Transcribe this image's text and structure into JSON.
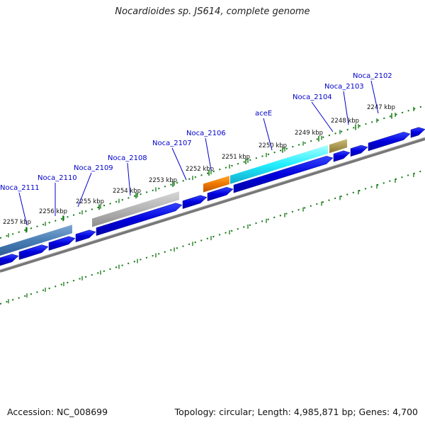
{
  "title": "Nocardioides sp. JS614, complete genome",
  "footer": {
    "accession": "Accession: NC_008699",
    "summary": "Topology: circular; Length: 4,985,871 bp; Genes: 4,700"
  },
  "colors": {
    "forward_gene": "#0000cc",
    "gene_label": "#0000cc",
    "tick": "#117711",
    "backbone": "#777777",
    "label_line": "#0000cc"
  },
  "ticks": {
    "outer": [
      {
        "label": "2257 kbp"
      },
      {
        "label": "2256 kbp"
      },
      {
        "label": "2255 kbp"
      },
      {
        "label": "2254 kbp"
      },
      {
        "label": "2253 kbp"
      },
      {
        "label": "2252 kbp"
      },
      {
        "label": "2251 kbp"
      },
      {
        "label": "2250 kbp"
      },
      {
        "label": "2249 kbp"
      },
      {
        "label": "2248 kbp"
      },
      {
        "label": "2247 kbp"
      }
    ]
  },
  "genes": [
    {
      "name": "Noca_2111",
      "color": "#4a7fb5"
    },
    {
      "name": "Noca_2110",
      "color": "#0000dd"
    },
    {
      "name": "Noca_2109",
      "color": "#0000dd"
    },
    {
      "name": "Noca_2108",
      "color": "#aaaaaa"
    },
    {
      "name": "Noca_2107",
      "color": "#0000dd"
    },
    {
      "name": "Noca_2106",
      "color": "#ee7700"
    },
    {
      "name": "aceE",
      "color": "#22ddee"
    },
    {
      "name": "Noca_2104",
      "color": "#0000dd"
    },
    {
      "name": "Noca_2103",
      "color": "#aa9955"
    },
    {
      "name": "Noca_2102",
      "color": "#0000dd"
    }
  ]
}
